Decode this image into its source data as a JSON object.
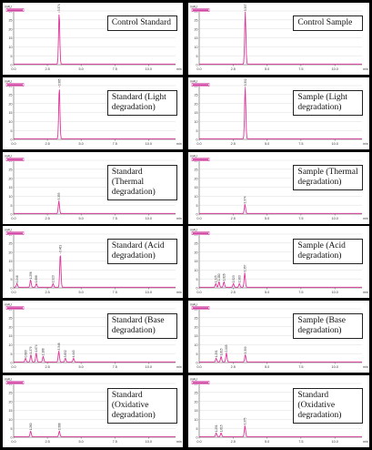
{
  "figure": {
    "unit_label": "mAU",
    "x_unit": "min",
    "x_ticks": [
      "0.0",
      "2.5",
      "5.0",
      "7.5",
      "10.0"
    ],
    "colors": {
      "trace": "#e0359b",
      "axis": "#555555",
      "grid": "#dddddd",
      "legend_bg": "#c4148a"
    }
  },
  "chart_data": [
    {
      "type": "line",
      "label": "Control Standard",
      "xlim": [
        0,
        12
      ],
      "ylim": [
        0,
        30
      ],
      "yticks": [
        0,
        5,
        10,
        15,
        20,
        25,
        30
      ],
      "peaks": [
        {
          "rt": 3.374,
          "height": 29
        }
      ],
      "peak_labels": [
        "3.374"
      ]
    },
    {
      "type": "line",
      "label": "Control Sample",
      "xlim": [
        0,
        12
      ],
      "ylim": [
        0,
        30
      ],
      "yticks": [
        0,
        5,
        10,
        15,
        20,
        25,
        30
      ],
      "peaks": [
        {
          "rt": 3.397,
          "height": 29
        }
      ],
      "peak_labels": [
        "3.397"
      ]
    },
    {
      "type": "line",
      "label": "Standard (Light degradation)",
      "xlim": [
        0,
        12
      ],
      "ylim": [
        0,
        30
      ],
      "yticks": [
        0,
        5,
        10,
        15,
        20,
        25,
        30
      ],
      "peaks": [
        {
          "rt": 3.385,
          "height": 29
        }
      ],
      "peak_labels": [
        "3.385"
      ]
    },
    {
      "type": "line",
      "label": "Sample (Light degradation)",
      "xlim": [
        0,
        12
      ],
      "ylim": [
        0,
        30
      ],
      "yticks": [
        0,
        5,
        10,
        15,
        20,
        25,
        30
      ],
      "peaks": [
        {
          "rt": 3.392,
          "height": 29
        }
      ],
      "peak_labels": [
        "3.392"
      ]
    },
    {
      "type": "line",
      "label": "Standard (Thermal degradation)",
      "xlim": [
        0,
        12
      ],
      "ylim": [
        0,
        30
      ],
      "yticks": [
        0,
        5,
        10,
        15,
        20,
        25,
        30
      ],
      "peaks": [
        {
          "rt": 3.353,
          "height": 7
        }
      ],
      "peak_labels": [
        "3.353"
      ]
    },
    {
      "type": "line",
      "label": "Sample (Thermal degradation)",
      "xlim": [
        0,
        12
      ],
      "ylim": [
        0,
        30
      ],
      "yticks": [
        0,
        5,
        10,
        15,
        20,
        25,
        30
      ],
      "peaks": [
        {
          "rt": 3.374,
          "height": 5
        }
      ],
      "peak_labels": [
        "3.374"
      ]
    },
    {
      "type": "line",
      "label": "Standard (Acid degradation)",
      "xlim": [
        0,
        12
      ],
      "ylim": [
        0,
        30
      ],
      "yticks": [
        0,
        5,
        10,
        15,
        20,
        25,
        30
      ],
      "peaks": [
        {
          "rt": 0.246,
          "height": 2
        },
        {
          "rt": 1.256,
          "height": 4
        },
        {
          "rt": 1.688,
          "height": 2
        },
        {
          "rt": 2.923,
          "height": 2
        },
        {
          "rt": 3.461,
          "height": 19
        }
      ],
      "peak_labels": [
        "0.246",
        "1.256",
        "1.688",
        "2.923",
        "3.461"
      ]
    },
    {
      "type": "line",
      "label": "Sample (Acid degradation)",
      "xlim": [
        0,
        12
      ],
      "ylim": [
        0,
        30
      ],
      "yticks": [
        0,
        5,
        10,
        15,
        20,
        25,
        30
      ],
      "peaks": [
        {
          "rt": 1.225,
          "height": 2
        },
        {
          "rt": 1.46,
          "height": 3
        },
        {
          "rt": 1.826,
          "height": 3
        },
        {
          "rt": 2.523,
          "height": 2
        },
        {
          "rt": 2.963,
          "height": 2
        },
        {
          "rt": 3.357,
          "height": 8
        }
      ],
      "peak_labels": [
        "1.225",
        "1.460",
        "1.826",
        "2.523",
        "2.963",
        "3.357"
      ]
    },
    {
      "type": "line",
      "label": "Standard (Base degradation)",
      "xlim": [
        0,
        12
      ],
      "ylim": [
        0,
        30
      ],
      "yticks": [
        0,
        5,
        10,
        15,
        20,
        25,
        30
      ],
      "peaks": [
        {
          "rt": 0.883,
          "height": 2
        },
        {
          "rt": 1.279,
          "height": 4
        },
        {
          "rt": 1.674,
          "height": 5
        },
        {
          "rt": 2.188,
          "height": 3
        },
        {
          "rt": 3.346,
          "height": 6
        },
        {
          "rt": 3.832,
          "height": 2
        },
        {
          "rt": 4.44,
          "height": 2
        }
      ],
      "peak_labels": [
        "0.883",
        "1.279",
        "1.674",
        "2.188",
        "3.346",
        "3.832",
        "4.440"
      ]
    },
    {
      "type": "line",
      "label": "Sample (Base degradation)",
      "xlim": [
        0,
        12
      ],
      "ylim": [
        0,
        30
      ],
      "yticks": [
        0,
        5,
        10,
        15,
        20,
        25,
        30
      ],
      "peaks": [
        {
          "rt": 1.251,
          "height": 2
        },
        {
          "rt": 1.615,
          "height": 3
        },
        {
          "rt": 2.005,
          "height": 5
        },
        {
          "rt": 3.399,
          "height": 4
        }
      ],
      "peak_labels": [
        "1.251",
        "1.615",
        "2.005",
        "3.399"
      ]
    },
    {
      "type": "line",
      "label": "Standard (Oxidative degradation)",
      "xlim": [
        0,
        12
      ],
      "ylim": [
        0,
        30
      ],
      "yticks": [
        0,
        5,
        10,
        15,
        20,
        25,
        30
      ],
      "peaks": [
        {
          "rt": 1.26,
          "height": 3
        },
        {
          "rt": 3.388,
          "height": 3
        }
      ],
      "peak_labels": [
        "1.260",
        "3.388"
      ]
    },
    {
      "type": "line",
      "label": "Standard (Oxidative degradation)",
      "xlim": [
        0,
        12
      ],
      "ylim": [
        0,
        30
      ],
      "yticks": [
        0,
        5,
        10,
        15,
        20,
        25,
        30
      ],
      "peaks": [
        {
          "rt": 1.251,
          "height": 2
        },
        {
          "rt": 1.615,
          "height": 2
        },
        {
          "rt": 3.375,
          "height": 6
        }
      ],
      "peak_labels": [
        "1.251",
        "1.615",
        "3.375"
      ]
    }
  ]
}
